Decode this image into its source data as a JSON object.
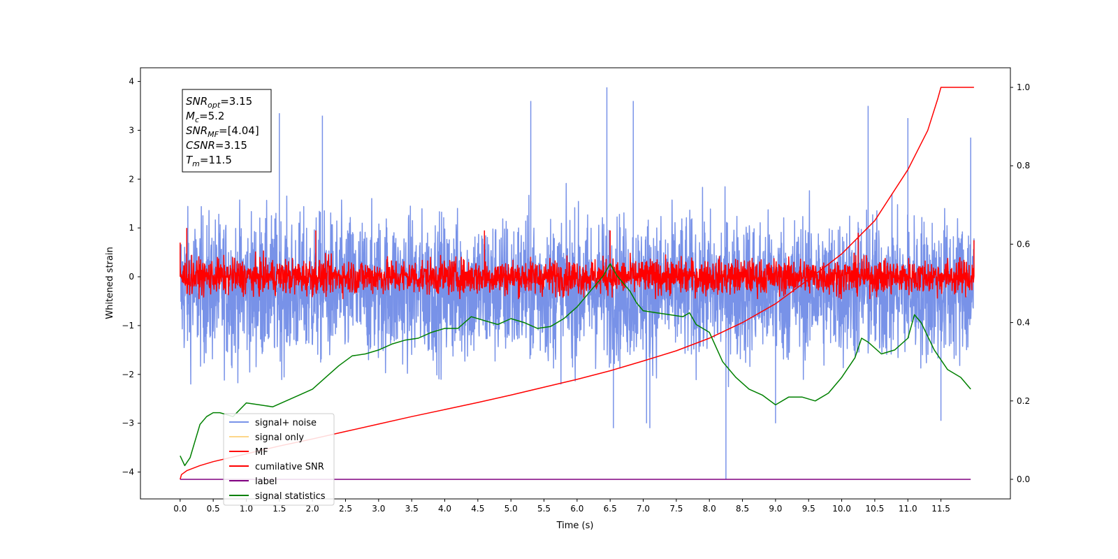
{
  "chart_data": {
    "type": "line",
    "xlabel": "Time (s)",
    "ylabel": "Whitened strain",
    "xlim": [
      -0.6,
      12.55
    ],
    "ylim": [
      -4.55,
      4.28
    ],
    "y2lim": [
      -0.05,
      1.05
    ],
    "x_ticks": [
      0.0,
      0.5,
      1.0,
      1.5,
      2.0,
      2.5,
      3.0,
      3.5,
      4.0,
      4.5,
      5.0,
      5.5,
      6.0,
      6.5,
      7.0,
      7.5,
      8.0,
      8.5,
      9.0,
      9.5,
      10.0,
      10.5,
      11.0,
      11.5
    ],
    "x_tick_labels": [
      "0.0",
      "0.5",
      "1.0",
      "1.5",
      "2.0",
      "2.5",
      "3.0",
      "3.5",
      "4.0",
      "4.5",
      "5.0",
      "5.5",
      "6.0",
      "6.5",
      "7.0",
      "7.5",
      "8.0",
      "8.5",
      "9.0",
      "9.5",
      "10.0",
      "10.5",
      "11.0",
      "11.5"
    ],
    "y_ticks": [
      -4,
      -3,
      -2,
      -1,
      0,
      1,
      2,
      3,
      4
    ],
    "y_tick_labels": [
      "−4",
      "−3",
      "−2",
      "−1",
      "0",
      "1",
      "2",
      "3",
      "4"
    ],
    "y2_ticks": [
      0.0,
      0.2,
      0.4,
      0.6,
      0.8,
      1.0
    ],
    "y2_tick_labels": [
      "0.0",
      "0.2",
      "0.4",
      "0.6",
      "0.8",
      "1.0"
    ],
    "grid": false,
    "legend_position": "lower-left",
    "info_box": [
      {
        "var": "SNR",
        "sub": "opt",
        "value": "=3.15"
      },
      {
        "var": "M",
        "sub": "c",
        "value": "=5.2"
      },
      {
        "var": "SNR",
        "sub": "MF",
        "value": "=[4.04]"
      },
      {
        "var": "CSNR",
        "sub": "",
        "value": "=3.15"
      },
      {
        "var": "T",
        "sub": "m",
        "value": "=11.5"
      }
    ],
    "series": [
      {
        "name": "signal+ noise",
        "color": "#7892e8",
        "axis": "left",
        "kind": "noise",
        "x_range": [
          0.0,
          12.0
        ],
        "center": -0.25,
        "spread": 0.75,
        "upper_envelope": 3.4,
        "lower_envelope": -2.6,
        "peaks": [
          [
            1.5,
            3.35
          ],
          [
            2.15,
            3.3
          ],
          [
            5.3,
            3.6
          ],
          [
            6.45,
            3.88
          ],
          [
            6.85,
            3.6
          ],
          [
            10.4,
            3.5
          ],
          [
            11.0,
            3.25
          ],
          [
            11.95,
            2.85
          ]
        ],
        "dips": [
          [
            6.55,
            -3.1
          ],
          [
            7.1,
            -3.1
          ],
          [
            7.05,
            -3.0
          ],
          [
            8.25,
            -4.15
          ],
          [
            9.0,
            -3.0
          ],
          [
            11.5,
            -2.95
          ]
        ]
      },
      {
        "name": "signal only",
        "color": "#fdd68a",
        "axis": "left",
        "x": [],
        "y": []
      },
      {
        "name": "MF",
        "color": "#ff0000",
        "axis": "left",
        "kind": "noise",
        "x_range": [
          0.0,
          12.0
        ],
        "center": 0.0,
        "spread": 0.18,
        "upper_envelope": 0.62,
        "lower_envelope": -0.45,
        "peaks": [
          [
            0.0,
            0.7
          ],
          [
            0.1,
            1.0
          ],
          [
            2.05,
            0.95
          ],
          [
            4.6,
            0.95
          ],
          [
            6.5,
            0.95
          ],
          [
            10.25,
            0.9
          ],
          [
            12.0,
            0.75
          ]
        ],
        "dips": []
      },
      {
        "name": "cumilative SNR",
        "color": "#ff0000",
        "axis": "right",
        "x": [
          0.0,
          0.02,
          0.1,
          0.3,
          0.5,
          1.0,
          1.5,
          2.0,
          2.5,
          3.0,
          3.5,
          4.0,
          4.5,
          5.0,
          5.5,
          6.0,
          6.5,
          7.0,
          7.5,
          8.0,
          8.5,
          9.0,
          9.5,
          10.0,
          10.5,
          11.0,
          11.3,
          11.45,
          11.5,
          12.0
        ],
        "y": [
          0.0,
          0.012,
          0.022,
          0.035,
          0.045,
          0.065,
          0.085,
          0.103,
          0.122,
          0.141,
          0.16,
          0.178,
          0.196,
          0.215,
          0.235,
          0.255,
          0.277,
          0.302,
          0.328,
          0.36,
          0.4,
          0.448,
          0.51,
          0.575,
          0.66,
          0.79,
          0.89,
          0.97,
          1.0,
          1.0
        ]
      },
      {
        "name": "label",
        "color": "#800080",
        "axis": "right",
        "x": [
          0.0,
          11.95
        ],
        "y": [
          0.0,
          0.0
        ]
      },
      {
        "name": "signal statistics",
        "color": "#008000",
        "axis": "right",
        "x": [
          0.0,
          0.07,
          0.15,
          0.3,
          0.4,
          0.5,
          0.6,
          0.7,
          0.8,
          1.0,
          1.2,
          1.4,
          1.6,
          1.8,
          2.0,
          2.2,
          2.4,
          2.6,
          2.8,
          3.0,
          3.2,
          3.4,
          3.6,
          3.8,
          4.0,
          4.2,
          4.4,
          4.6,
          4.8,
          5.0,
          5.2,
          5.4,
          5.6,
          5.8,
          6.0,
          6.2,
          6.4,
          6.5,
          6.6,
          6.7,
          6.8,
          6.9,
          7.0,
          7.2,
          7.4,
          7.6,
          7.7,
          7.8,
          8.0,
          8.2,
          8.4,
          8.6,
          8.8,
          9.0,
          9.2,
          9.4,
          9.6,
          9.8,
          10.0,
          10.2,
          10.3,
          10.4,
          10.6,
          10.8,
          11.0,
          11.1,
          11.2,
          11.4,
          11.6,
          11.8,
          11.95
        ],
        "y": [
          0.06,
          0.035,
          0.055,
          0.14,
          0.16,
          0.17,
          0.17,
          0.165,
          0.16,
          0.195,
          0.19,
          0.185,
          0.2,
          0.215,
          0.23,
          0.26,
          0.29,
          0.315,
          0.32,
          0.33,
          0.345,
          0.355,
          0.36,
          0.375,
          0.385,
          0.385,
          0.415,
          0.405,
          0.395,
          0.41,
          0.4,
          0.385,
          0.39,
          0.41,
          0.44,
          0.48,
          0.52,
          0.55,
          0.52,
          0.5,
          0.48,
          0.45,
          0.43,
          0.425,
          0.42,
          0.415,
          0.425,
          0.395,
          0.375,
          0.3,
          0.26,
          0.23,
          0.215,
          0.19,
          0.21,
          0.21,
          0.2,
          0.22,
          0.26,
          0.31,
          0.36,
          0.35,
          0.32,
          0.33,
          0.36,
          0.42,
          0.4,
          0.33,
          0.28,
          0.26,
          0.23
        ]
      }
    ]
  }
}
